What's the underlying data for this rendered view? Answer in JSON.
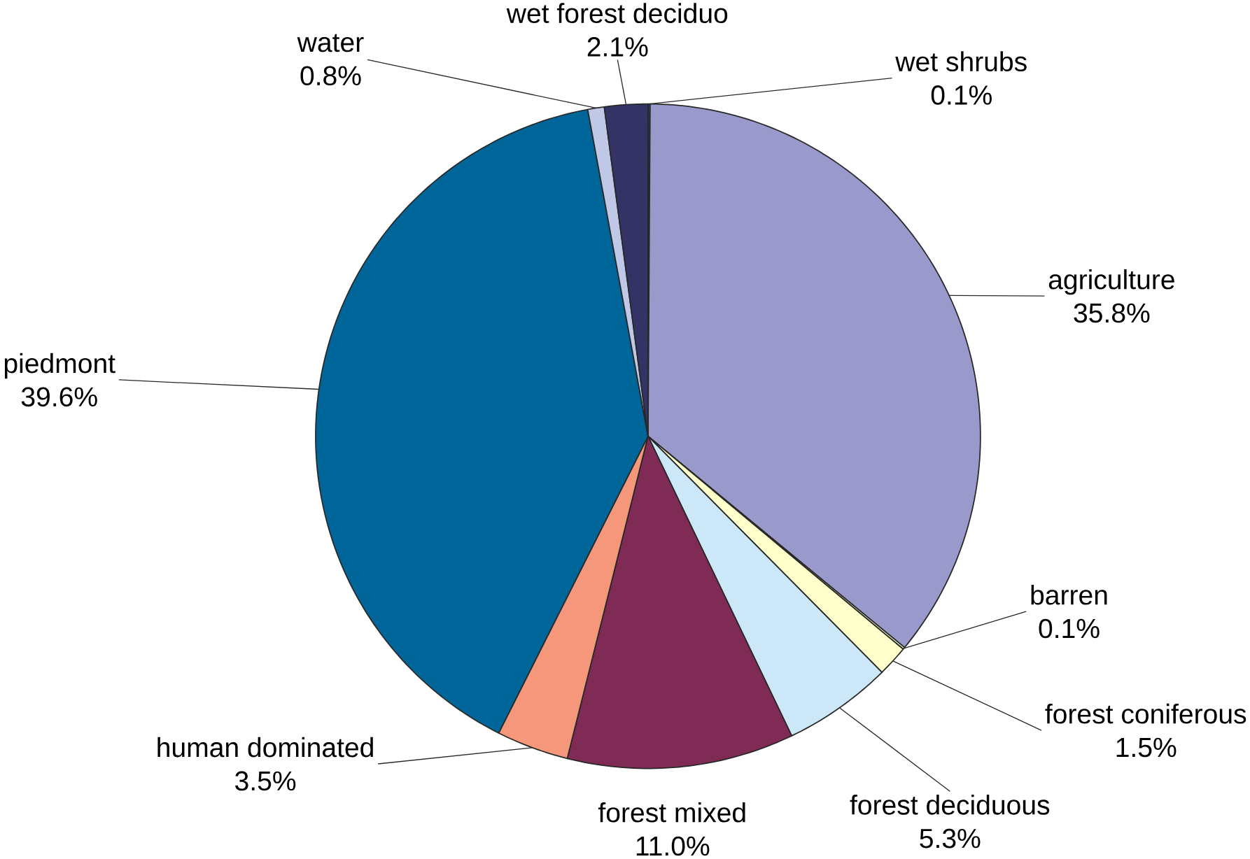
{
  "chart_data": {
    "type": "pie",
    "categories": [
      "wet shrubs",
      "agriculture",
      "barren",
      "forest coniferous",
      "forest deciduous",
      "forest mixed",
      "human dominated",
      "piedmont",
      "water",
      "wet forest deciduo"
    ],
    "values": [
      0.1,
      35.8,
      0.1,
      1.5,
      5.3,
      11.0,
      3.5,
      39.6,
      0.8,
      2.1
    ],
    "value_labels": [
      "0.1%",
      "35.8%",
      "0.1%",
      "1.5%",
      "5.3%",
      "11.0%",
      "3.5%",
      "39.6%",
      "0.8%",
      "2.1%"
    ],
    "colors": [
      "#1f3f6f",
      "#9999cc",
      "#ffffcc",
      "#ffffcc",
      "#cce8f8",
      "#7f2b55",
      "#f4977a",
      "#006699",
      "#c0c8e8",
      "#333366"
    ]
  }
}
